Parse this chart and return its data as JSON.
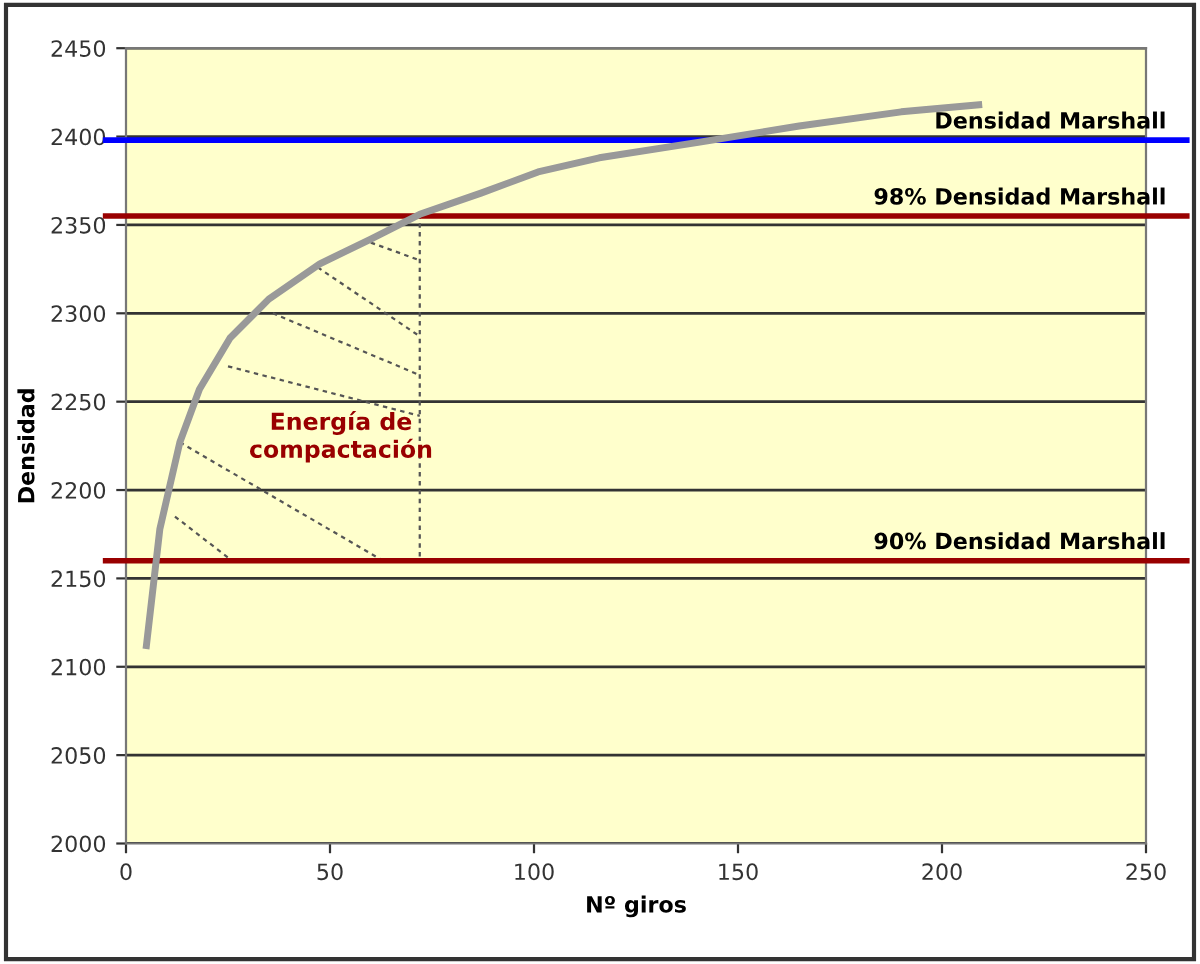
{
  "chart_data": {
    "type": "line",
    "xlabel": "Nº giros",
    "ylabel": "Densidad",
    "x": [
      5,
      8.3,
      13.2,
      18,
      25.5,
      35,
      47.5,
      60,
      72,
      87,
      101,
      116,
      141,
      165,
      190,
      209
    ],
    "series": [
      {
        "color": "#999999",
        "values": [
          2112,
          2178,
          2227,
          2257,
          2286,
          2308,
          2328,
          2342,
          2356,
          2368,
          2380,
          2388,
          2397,
          2406,
          2414,
          2418
        ]
      }
    ],
    "xlim": [
      0,
      250
    ],
    "xticks": [
      0,
      50,
      100,
      150,
      200,
      250
    ],
    "ylim": [
      2000,
      2450
    ],
    "yticks": [
      2000,
      2050,
      2100,
      2150,
      2200,
      2250,
      2300,
      2350,
      2400,
      2450
    ],
    "grid": "y",
    "marker": "none",
    "line_style": "solid",
    "ref_lines": [
      {
        "axis": "y",
        "value": 2398,
        "label": "Densidad Marshall",
        "color": "#0000ff"
      },
      {
        "axis": "y",
        "value": 2355,
        "label": "98% Densidad Marshall",
        "color": "#990000"
      },
      {
        "axis": "y",
        "value": 2160,
        "label": "90% Densidad Marshall",
        "color": "#990000"
      }
    ],
    "annotations": [
      {
        "text": "Energía de\ncompactación",
        "x": 13.2,
        "y": 2227
      }
    ]
  }
}
